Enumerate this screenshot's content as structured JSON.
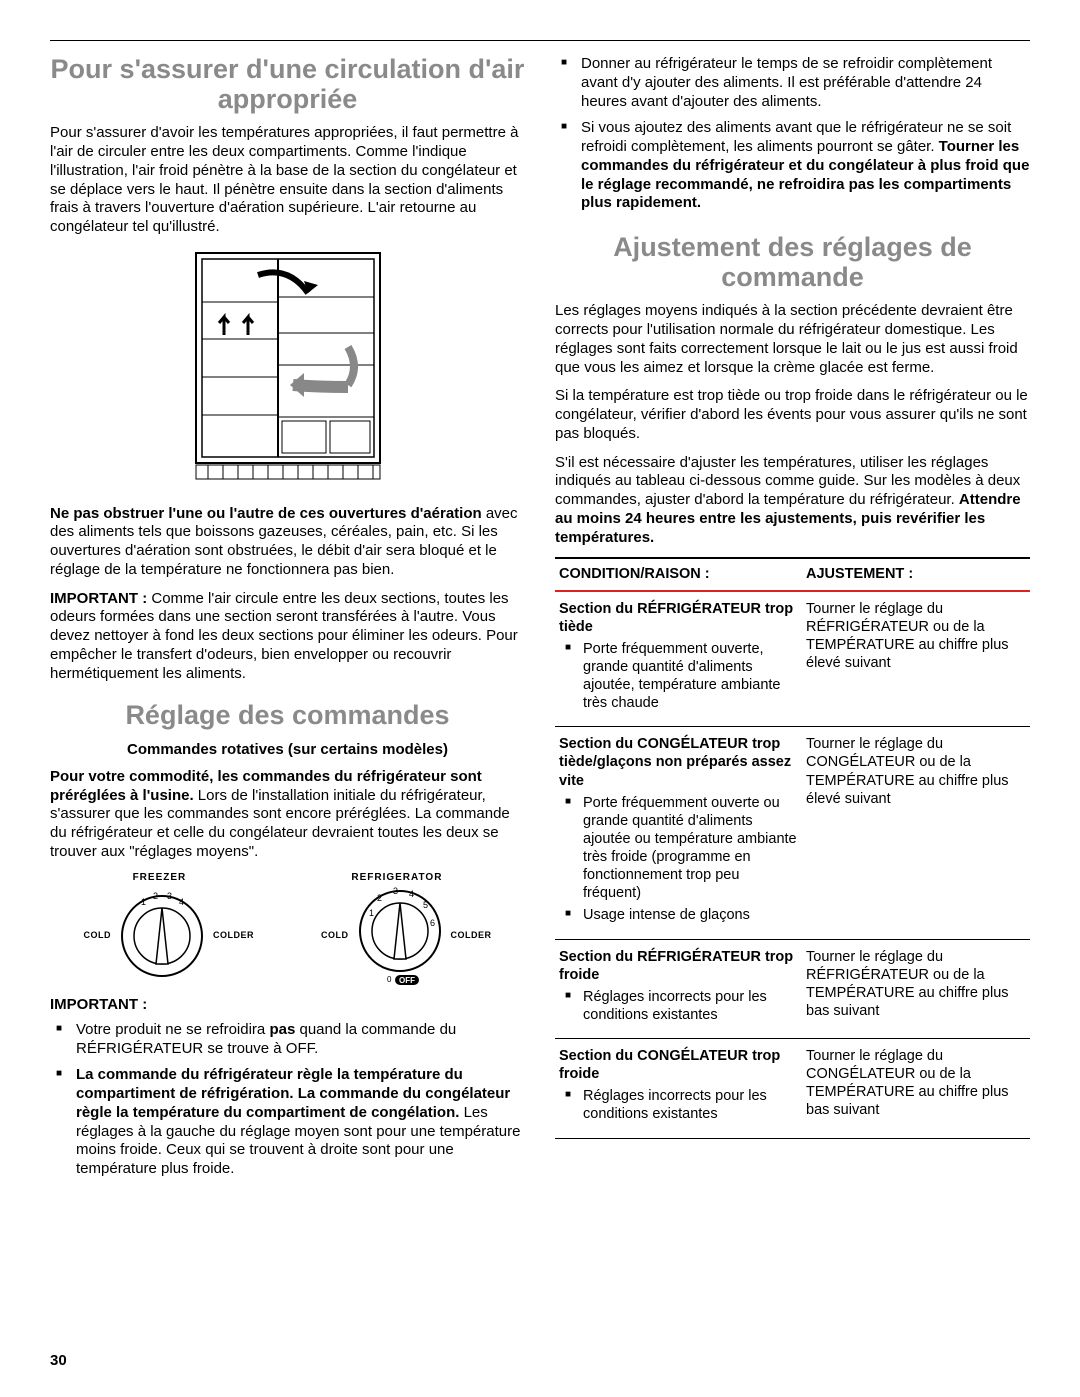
{
  "page_number": "30",
  "section1": {
    "title": "Pour s'assurer d'une circulation d'air appropriée",
    "p1": "Pour s'assurer d'avoir les températures appropriées, il faut permettre à l'air de circuler entre les deux compartiments. Comme l'indique l'illustration, l'air froid pénètre à la base de la section du congélateur et se déplace vers le haut. Il pénètre ensuite dans la section d'aliments frais à travers l'ouverture d'aération supérieure. L'air retourne au congélateur tel qu'illustré.",
    "p2_bold": "Ne pas obstruer l'une ou l'autre de ces ouvertures d'aération",
    "p2_rest": " avec des aliments tels que boissons gazeuses, céréales, pain, etc. Si les ouvertures d'aération sont obstruées, le débit d'air sera bloqué et le réglage de la température ne fonctionnera pas bien.",
    "p3_label": "IMPORTANT : ",
    "p3_rest": "Comme l'air circule entre les deux sections, toutes les odeurs formées dans une section seront transférées à l'autre. Vous devez nettoyer à fond les deux sections pour éliminer les odeurs. Pour empêcher le transfert d'odeurs, bien envelopper ou recouvrir hermétiquement les aliments."
  },
  "section2": {
    "title": "Réglage des commandes",
    "subheading": "Commandes rotatives (sur certains modèles)",
    "p1_bold": "Pour votre commodité, les commandes du réfrigérateur sont préréglées à l'usine.",
    "p1_rest": " Lors de l'installation initiale du réfrigérateur, s'assurer que les commandes sont encore préréglées. La commande du réfrigérateur et celle du congélateur devraient toutes les deux se trouver aux \"réglages moyens\".",
    "dial_freezer": "FREEZER",
    "dial_refrigerator": "REFRIGERATOR",
    "cold": "COLD",
    "colder": "COLDER",
    "off": "OFF",
    "important_label": "IMPORTANT :",
    "b1_a": "Votre produit ne se refroidira ",
    "b1_bold": "pas",
    "b1_b": " quand la commande du RÉFRIGÉRATEUR se trouve à OFF.",
    "b2": "La commande du réfrigérateur règle la température du compartiment de réfrigération. La commande du congélateur règle la température du compartiment de congélation.",
    "b2_rest": " Les réglages à la gauche du réglage moyen sont pour une température moins froide. Ceux qui se trouvent à droite sont pour une température plus froide.",
    "b3": "Donner au réfrigérateur le temps de se refroidir complètement avant d'y ajouter des aliments. Il est préférable d'attendre 24 heures avant d'ajouter des aliments.",
    "b4_a": "Si vous ajoutez des aliments avant que le réfrigérateur ne se soit refroidi complètement, les aliments pourront se gâter. ",
    "b4_bold": "Tourner les commandes du réfrigérateur et du congélateur à plus froid que le réglage recommandé, ne refroidira pas les compartiments plus rapidement."
  },
  "section3": {
    "title": "Ajustement des réglages de commande",
    "p1": "Les réglages moyens indiqués à la section précédente devraient être corrects pour l'utilisation normale du réfrigérateur domestique. Les réglages sont faits correctement lorsque le lait ou le jus est aussi froid que vous les aimez et lorsque la crème glacée est ferme.",
    "p2": "Si la température est trop tiède ou trop froide dans le réfrigérateur ou le congélateur, vérifier d'abord les évents pour vous assurer qu'ils ne sont pas bloqués.",
    "p3_a": "S'il est nécessaire d'ajuster les températures, utiliser les réglages indiqués au tableau ci-dessous comme guide. Sur les modèles à deux commandes, ajuster d'abord la température du réfrigérateur. ",
    "p3_bold": "Attendre au moins 24 heures entre les ajustements, puis revérifier les températures.",
    "th1": "CONDITION/RAISON :",
    "th2": "AJUSTEMENT :",
    "rows": [
      {
        "cond_title": "Section du RÉFRIGÉRATEUR trop tiède",
        "bullets": [
          "Porte fréquemment ouverte, grande quantité d'aliments ajoutée, température ambiante très chaude"
        ],
        "adj": "Tourner le réglage du RÉFRIGÉRATEUR ou de la TEMPÉRATURE au chiffre plus élevé suivant"
      },
      {
        "cond_title": "Section du CONGÉLATEUR trop tiède/glaçons non préparés assez vite",
        "bullets": [
          "Porte fréquemment ouverte ou grande quantité d'aliments ajoutée ou température ambiante très froide (programme en fonctionnement trop peu fréquent)",
          "Usage intense de glaçons"
        ],
        "adj": "Tourner le réglage du CONGÉLATEUR ou de la TEMPÉRATURE au chiffre plus élevé suivant"
      },
      {
        "cond_title": "Section du RÉFRIGÉRATEUR trop froide",
        "bullets": [
          "Réglages incorrects pour les conditions existantes"
        ],
        "adj": "Tourner le réglage du RÉFRIGÉRATEUR ou de la TEMPÉRATURE au chiffre plus bas suivant"
      },
      {
        "cond_title": "Section du CONGÉLATEUR trop froide",
        "bullets": [
          "Réglages incorrects pour les conditions existantes"
        ],
        "adj": "Tourner le réglage du CONGÉLATEUR ou de la TEMPÉRATURE au chiffre plus bas suivant"
      }
    ]
  }
}
